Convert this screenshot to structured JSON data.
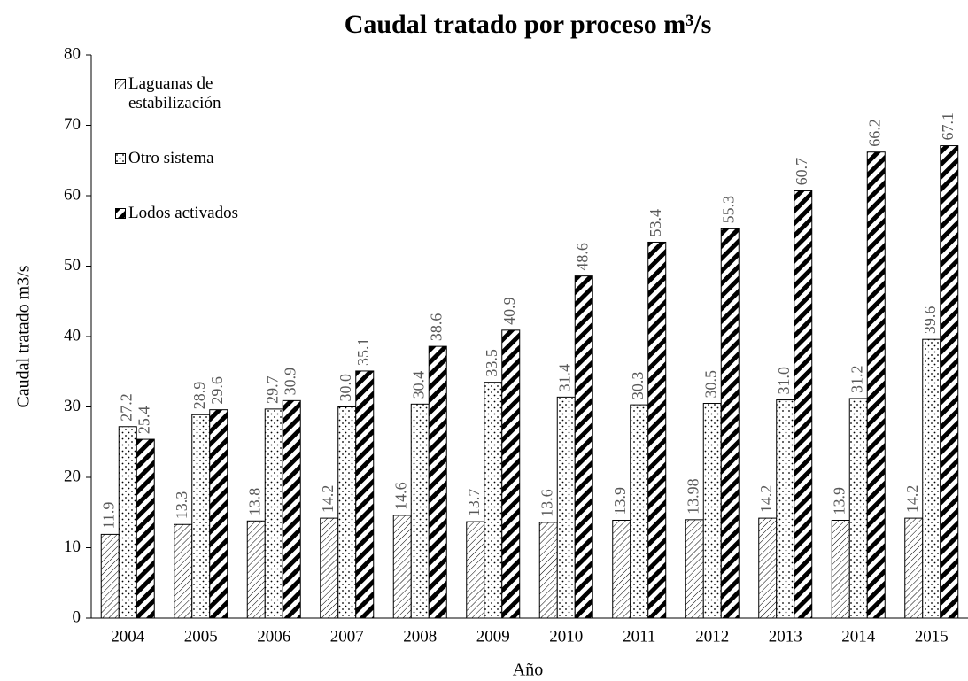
{
  "chart_data": {
    "type": "bar",
    "title": "Caudal tratado por proceso m³/s",
    "x_label": "Año",
    "y_label": "Caudal tratado m3/s",
    "categories": [
      "2004",
      "2005",
      "2006",
      "2007",
      "2008",
      "2009",
      "2010",
      "2011",
      "2012",
      "2013",
      "2014",
      "2015"
    ],
    "series": [
      {
        "name": "Laguanas de estabilización",
        "color": "#000000",
        "pattern": "hatch",
        "values": [
          11.9,
          13.3,
          13.8,
          14.2,
          14.6,
          13.7,
          13.6,
          13.9,
          13.98,
          14.2,
          13.9,
          14.2
        ],
        "value_labels": [
          "11.9",
          "13.3",
          "13.8",
          "14.2",
          "14.6",
          "13.7",
          "13.6",
          "13.9",
          "13.98",
          "14.2",
          "13.9",
          "14.2"
        ]
      },
      {
        "name": "Otro sistema",
        "color": "#000000",
        "pattern": "dots",
        "values": [
          27.2,
          28.9,
          29.7,
          30.0,
          30.4,
          33.5,
          31.4,
          30.3,
          30.5,
          31.0,
          31.2,
          39.6
        ],
        "value_labels": [
          "27.2",
          "28.9",
          "29.7",
          "30.0",
          "30.4",
          "33.5",
          "31.4",
          "30.3",
          "30.5",
          "31.0",
          "31.2",
          "39.6"
        ]
      },
      {
        "name": "Lodos activados",
        "color": "#000000",
        "pattern": "stripes",
        "values": [
          25.4,
          29.6,
          30.9,
          35.1,
          38.6,
          40.9,
          48.6,
          53.4,
          55.3,
          60.7,
          66.2,
          67.1
        ],
        "value_labels": [
          "25.4",
          "29.6",
          "30.9",
          "35.1",
          "38.6",
          "40.9",
          "48.6",
          "53.4",
          "55.3",
          "60.7",
          "66.2",
          "67.1"
        ]
      }
    ],
    "ylim": [
      0,
      80
    ],
    "yticks": [
      0,
      10,
      20,
      30,
      40,
      50,
      60,
      70,
      80
    ],
    "grid": false,
    "legend": "top-left"
  }
}
